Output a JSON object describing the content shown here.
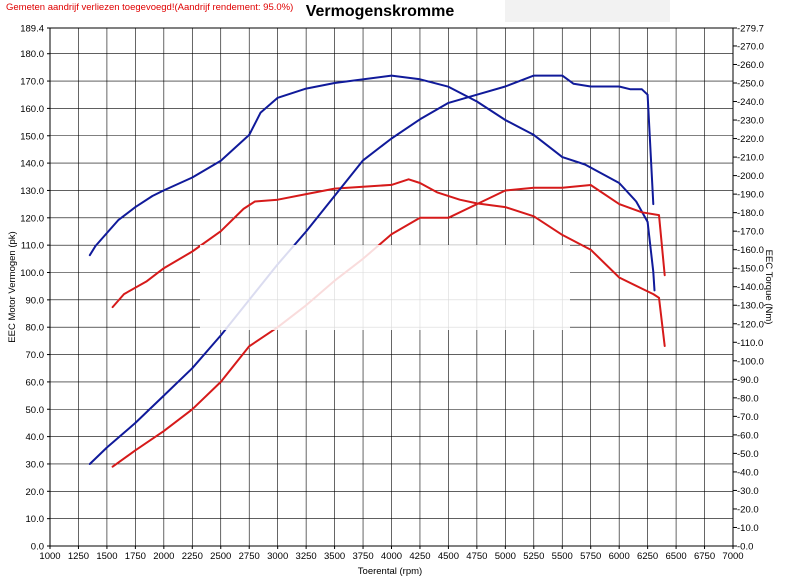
{
  "header": {
    "note": "Gemeten aandrijf verliezen toegevoegd!(Aandrijf rendement: 95.0%)"
  },
  "chart_data": {
    "type": "line",
    "title": "Vermogenskromme",
    "xlabel": "Toerental (rpm)",
    "ylabel": "EEC Motor Vermogen (pk)",
    "y2label": "EEC Torque (Nm)",
    "xlim": [
      1000,
      7000
    ],
    "ylim": [
      0,
      189.4
    ],
    "y2lim": [
      0,
      279.7
    ],
    "grid": true,
    "x_ticks": [
      "1000",
      "1250",
      "1500",
      "1750",
      "2000",
      "2250",
      "2500",
      "2750",
      "3000",
      "3250",
      "3500",
      "3750",
      "4000",
      "4250",
      "4500",
      "4750",
      "5000",
      "5250",
      "5500",
      "5750",
      "6000",
      "6250",
      "6500",
      "6750",
      "7000"
    ],
    "y_ticks": [
      "189.4",
      "180.0",
      "170.0",
      "160.0",
      "150.0",
      "140.0",
      "130.0",
      "120.0",
      "110.0",
      "100.0",
      "90.0",
      "80.0",
      "70.0",
      "60.0",
      "50.0",
      "40.0",
      "30.0",
      "20.0",
      "10.0",
      "0.0"
    ],
    "y2_ticks": [
      "279.7",
      "270.0",
      "260.0",
      "250.0",
      "240.0",
      "230.0",
      "220.0",
      "210.0",
      "200.0",
      "190.0",
      "180.0",
      "170.0",
      "160.0",
      "150.0",
      "140.0",
      "130.0",
      "120.0",
      "110.0",
      "100.0",
      "90.0",
      "80.0",
      "70.0",
      "60.0",
      "50.0",
      "40.0",
      "30.0",
      "20.0",
      "10.0",
      "0.0"
    ],
    "series": [
      {
        "axis": "y2",
        "color": "#101a9a",
        "points": [
          [
            1350,
            157
          ],
          [
            1400,
            162
          ],
          [
            1500,
            169
          ],
          [
            1600,
            176
          ],
          [
            1750,
            183
          ],
          [
            1900,
            189
          ],
          [
            2000,
            192
          ],
          [
            2250,
            199
          ],
          [
            2500,
            208
          ],
          [
            2750,
            222
          ],
          [
            2850,
            234
          ],
          [
            3000,
            242
          ],
          [
            3250,
            247
          ],
          [
            3500,
            250
          ],
          [
            4000,
            254
          ],
          [
            4250,
            252
          ],
          [
            4500,
            248
          ],
          [
            4750,
            240
          ],
          [
            5000,
            230
          ],
          [
            5250,
            222
          ],
          [
            5500,
            210
          ],
          [
            5700,
            206
          ],
          [
            6000,
            196
          ],
          [
            6150,
            186
          ],
          [
            6250,
            175
          ],
          [
            6300,
            148
          ],
          [
            6310,
            138
          ]
        ]
      },
      {
        "axis": "y2",
        "color": "#d61a1a",
        "points": [
          [
            1550,
            129
          ],
          [
            1650,
            136
          ],
          [
            1850,
            143
          ],
          [
            2000,
            150
          ],
          [
            2250,
            159
          ],
          [
            2500,
            170
          ],
          [
            2700,
            182
          ],
          [
            2800,
            186
          ],
          [
            3000,
            187
          ],
          [
            3250,
            190
          ],
          [
            3500,
            193
          ],
          [
            3750,
            194
          ],
          [
            4000,
            195
          ],
          [
            4150,
            198
          ],
          [
            4250,
            196
          ],
          [
            4400,
            191
          ],
          [
            4600,
            187
          ],
          [
            4750,
            185
          ],
          [
            5000,
            183
          ],
          [
            5250,
            178
          ],
          [
            5500,
            168
          ],
          [
            5750,
            160
          ],
          [
            6000,
            145
          ],
          [
            6200,
            139
          ],
          [
            6300,
            136
          ],
          [
            6350,
            134
          ],
          [
            6400,
            108
          ]
        ]
      },
      {
        "axis": "y",
        "color": "#101a9a",
        "points": [
          [
            1350,
            30
          ],
          [
            1500,
            36
          ],
          [
            1750,
            45
          ],
          [
            2000,
            55
          ],
          [
            2250,
            65
          ],
          [
            2500,
            77
          ],
          [
            2750,
            90
          ],
          [
            3000,
            103
          ],
          [
            3250,
            115
          ],
          [
            3500,
            128
          ],
          [
            3750,
            141
          ],
          [
            4000,
            149
          ],
          [
            4250,
            156
          ],
          [
            4500,
            162
          ],
          [
            4750,
            165
          ],
          [
            5000,
            168
          ],
          [
            5250,
            172
          ],
          [
            5500,
            172
          ],
          [
            5600,
            169
          ],
          [
            5750,
            168
          ],
          [
            6000,
            168
          ],
          [
            6100,
            167
          ],
          [
            6200,
            167
          ],
          [
            6250,
            165
          ],
          [
            6300,
            125
          ]
        ]
      },
      {
        "axis": "y",
        "color": "#d61a1a",
        "points": [
          [
            1550,
            29
          ],
          [
            1750,
            35
          ],
          [
            2000,
            42
          ],
          [
            2250,
            50
          ],
          [
            2500,
            60
          ],
          [
            2750,
            73
          ],
          [
            3000,
            80
          ],
          [
            3250,
            88
          ],
          [
            3500,
            97
          ],
          [
            3750,
            105
          ],
          [
            4000,
            114
          ],
          [
            4250,
            120
          ],
          [
            4500,
            120
          ],
          [
            4750,
            125
          ],
          [
            5000,
            130
          ],
          [
            5250,
            131
          ],
          [
            5500,
            131
          ],
          [
            5750,
            132
          ],
          [
            6000,
            125
          ],
          [
            6200,
            122
          ],
          [
            6350,
            121
          ],
          [
            6400,
            99
          ]
        ]
      }
    ]
  }
}
